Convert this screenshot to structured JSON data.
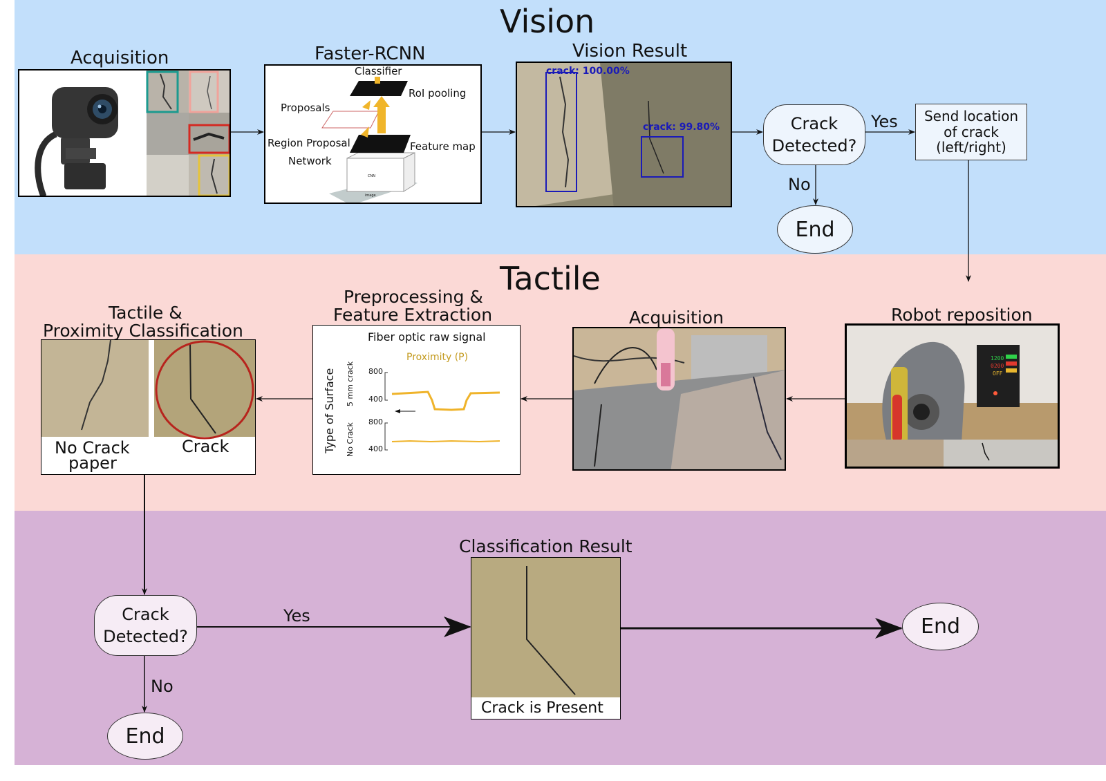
{
  "colors": {
    "vision_bg": "#c2dffb",
    "tactile_bg": "#fbd9d6",
    "result_bg": "#d6b2d6",
    "node_fill": "#eef5fd",
    "end_fill": "#f6ecf5",
    "bbox_blue": "#1a1ab8",
    "signal_orange": "#efb32a"
  },
  "vision": {
    "title": "Vision",
    "acquisition": {
      "label": "Acquisition",
      "icon": "webcam-icon"
    },
    "faster_rcnn": {
      "label": "Faster-RCNN",
      "classifier": "Classifier",
      "roi_pooling": "RoI pooling",
      "proposals": "Proposals",
      "region_proposal_line1": "Region Proposal",
      "region_proposal_line2": "Network",
      "feature_map": "Feature map",
      "cnn": "CNN",
      "image": "image"
    },
    "vision_result": {
      "label": "Vision Result",
      "det1": "crack: 100.00%",
      "det2": "crack: 99.80%"
    },
    "decision": {
      "line1": "Crack",
      "line2": "Detected?",
      "yes": "Yes",
      "no": "No"
    },
    "end": "End",
    "send": {
      "line1": "Send location",
      "line2": "of crack",
      "line3": "(left/right)"
    }
  },
  "tactile": {
    "title": "Tactile",
    "robot_reposition": "Robot reposition",
    "acquisition": "Acquisition",
    "preprocessing": {
      "line1": "Preprocessing &",
      "line2": "Feature Extraction",
      "plot_title": "Fiber optic raw signal",
      "legend": "Proximity (P)",
      "y_axis": "Type of Surface",
      "row1_label": "5 mm crack",
      "row2_label": "No Crack",
      "tick_high": "800",
      "tick_low": "400"
    },
    "classification": {
      "line1": "Tactile &",
      "line2": "Proximity Classification",
      "no_crack_line1": "No Crack",
      "no_crack_line2": "paper",
      "crack": "Crack"
    },
    "display": {
      "power_v": "1200",
      "power_a": "0200",
      "power_state": "OFF"
    }
  },
  "result": {
    "decision": {
      "line1": "Crack",
      "line2": "Detected?",
      "yes": "Yes",
      "no": "No"
    },
    "classification_result": "Classification Result",
    "crack_present": "Crack is Present",
    "end_right": "End",
    "end_bottom": "End"
  }
}
